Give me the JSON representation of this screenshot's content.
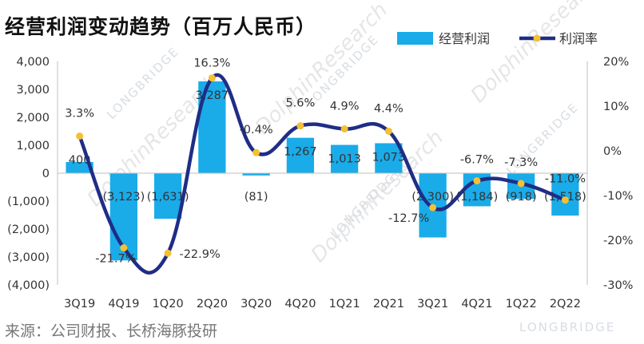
{
  "title": "经营利润变动趋势（百万人民币）",
  "source": "来源：公司财报、长桥海豚投研",
  "watermark": {
    "main": "DolphinResearch",
    "brand": "LONGBRIDGE"
  },
  "chart_data": {
    "type": "bar+line",
    "categories": [
      "3Q19",
      "4Q19",
      "1Q20",
      "2Q20",
      "3Q20",
      "4Q20",
      "1Q21",
      "2Q21",
      "3Q21",
      "4Q21",
      "1Q22",
      "2Q22"
    ],
    "series": [
      {
        "name": "经营利润",
        "type": "bar",
        "axis": "left",
        "values": [
          400,
          -3123,
          -1631,
          3287,
          -81,
          1267,
          1013,
          1073,
          -2300,
          -1184,
          -918,
          -1518
        ],
        "labels": [
          "400",
          "(3,123)",
          "(1,631)",
          "3,287",
          "(81)",
          "1,267",
          "1,013",
          "1,073",
          "(2,300)",
          "(1,184)",
          "(918)",
          "(1,518)"
        ],
        "color": "#1aabe9"
      },
      {
        "name": "利润率",
        "type": "line",
        "axis": "right",
        "values": [
          3.3,
          -21.7,
          -22.9,
          16.3,
          -0.4,
          5.6,
          4.9,
          4.4,
          -12.7,
          -6.7,
          -7.3,
          -11.0
        ],
        "labels": [
          "3.3%",
          "-21.7%",
          "-22.9%",
          "16.3%",
          "-0.4%",
          "5.6%",
          "4.9%",
          "4.4%",
          "-12.7%",
          "-6.7%",
          "-7.3%",
          "-11.0%"
        ],
        "color": "#1f2d86",
        "marker_color": "#f5c033"
      }
    ],
    "left_axis": {
      "ylim": [
        -4000,
        4000
      ],
      "ticks": [
        4000,
        3000,
        2000,
        1000,
        0,
        -1000,
        -2000,
        -3000,
        -4000
      ],
      "tick_labels": [
        "4,000",
        "3,000",
        "2,000",
        "1,000",
        "0",
        "(1,000)",
        "(2,000)",
        "(3,000)",
        "(4,000)"
      ]
    },
    "right_axis": {
      "ylim": [
        -30,
        20
      ],
      "ticks": [
        20,
        10,
        0,
        -10,
        -20,
        -30
      ],
      "tick_labels": [
        "20%",
        "10%",
        "0%",
        "-10%",
        "-20%",
        "-30%"
      ]
    },
    "grid": false,
    "legend": "top-right"
  }
}
